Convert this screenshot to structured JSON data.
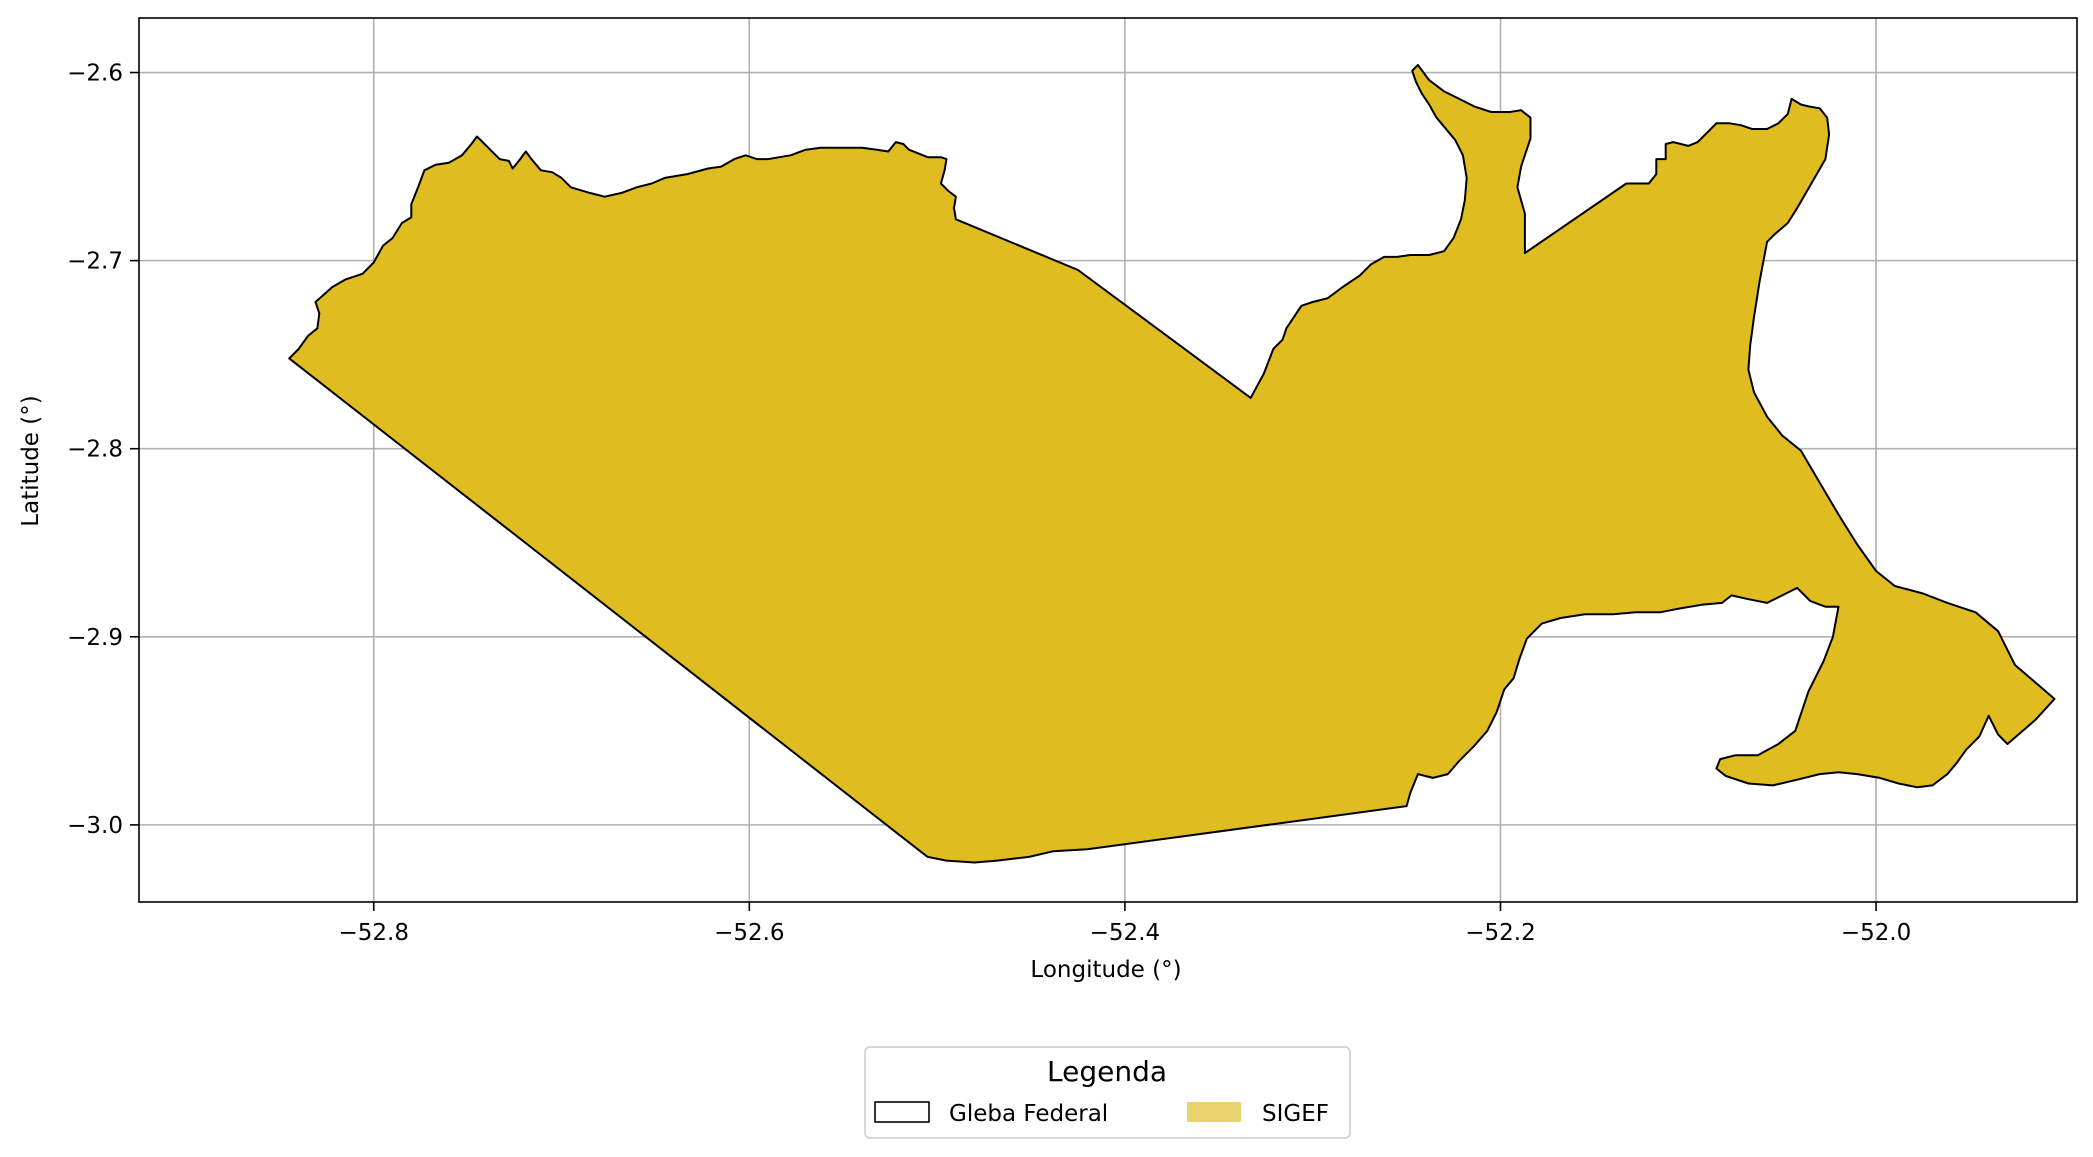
{
  "map": {
    "xlabel": "Longitude (°)",
    "ylabel": "Latitude (°)",
    "xlim": [
      -52.925,
      -51.893
    ],
    "ylim": [
      -3.041,
      -2.571
    ],
    "grid": true,
    "xticks": [
      {
        "value": -52.8,
        "label": "−52.8"
      },
      {
        "value": -52.6,
        "label": "−52.6"
      },
      {
        "value": -52.4,
        "label": "−52.4"
      },
      {
        "value": -52.2,
        "label": "−52.2"
      },
      {
        "value": -52.0,
        "label": "−52.0"
      }
    ],
    "yticks": [
      {
        "value": -2.6,
        "label": "−2.6"
      },
      {
        "value": -2.7,
        "label": "−2.7"
      },
      {
        "value": -2.8,
        "label": "−2.8"
      },
      {
        "value": -2.9,
        "label": "−2.9"
      },
      {
        "value": -3.0,
        "label": "−3.0"
      }
    ],
    "colors": {
      "sigef_fill": "#dfbc20",
      "outline": "#000000",
      "grid": "#b0b0b0",
      "legend_sigef_patch": "#e8d36f"
    },
    "legend": {
      "title": "Legenda",
      "placement": "bottom-center, below plot",
      "entries": [
        {
          "label": "Gleba Federal",
          "style": "outline"
        },
        {
          "label": "SIGEF",
          "style": "fill"
        }
      ]
    },
    "polygon": [
      [
        -52.845,
        -2.752
      ],
      [
        -52.84,
        -2.747
      ],
      [
        -52.835,
        -2.74
      ],
      [
        -52.83,
        -2.736
      ],
      [
        -52.829,
        -2.728
      ],
      [
        -52.831,
        -2.722
      ],
      [
        -52.822,
        -2.714
      ],
      [
        -52.815,
        -2.71
      ],
      [
        -52.806,
        -2.707
      ],
      [
        -52.8,
        -2.701
      ],
      [
        -52.795,
        -2.692
      ],
      [
        -52.79,
        -2.688
      ],
      [
        -52.785,
        -2.68
      ],
      [
        -52.78,
        -2.677
      ],
      [
        -52.78,
        -2.67
      ],
      [
        -52.776,
        -2.66
      ],
      [
        -52.773,
        -2.652
      ],
      [
        -52.767,
        -2.649
      ],
      [
        -52.76,
        -2.648
      ],
      [
        -52.753,
        -2.644
      ],
      [
        -52.748,
        -2.638
      ],
      [
        -52.745,
        -2.634
      ],
      [
        -52.742,
        -2.637
      ],
      [
        -52.738,
        -2.641
      ],
      [
        -52.733,
        -2.646
      ],
      [
        -52.728,
        -2.647
      ],
      [
        -52.726,
        -2.651
      ],
      [
        -52.722,
        -2.646
      ],
      [
        -52.719,
        -2.642
      ],
      [
        -52.716,
        -2.646
      ],
      [
        -52.711,
        -2.652
      ],
      [
        -52.705,
        -2.653
      ],
      [
        -52.7,
        -2.656
      ],
      [
        -52.695,
        -2.661
      ],
      [
        -52.685,
        -2.664
      ],
      [
        -52.677,
        -2.666
      ],
      [
        -52.668,
        -2.664
      ],
      [
        -52.66,
        -2.661
      ],
      [
        -52.652,
        -2.659
      ],
      [
        -52.645,
        -2.656
      ],
      [
        -52.633,
        -2.654
      ],
      [
        -52.622,
        -2.651
      ],
      [
        -52.615,
        -2.65
      ],
      [
        -52.608,
        -2.646
      ],
      [
        -52.602,
        -2.644
      ],
      [
        -52.596,
        -2.646
      ],
      [
        -52.59,
        -2.646
      ],
      [
        -52.584,
        -2.645
      ],
      [
        -52.578,
        -2.644
      ],
      [
        -52.57,
        -2.641
      ],
      [
        -52.562,
        -2.64
      ],
      [
        -52.55,
        -2.64
      ],
      [
        -52.54,
        -2.64
      ],
      [
        -52.532,
        -2.641
      ],
      [
        -52.526,
        -2.642
      ],
      [
        -52.522,
        -2.637
      ],
      [
        -52.518,
        -2.638
      ],
      [
        -52.515,
        -2.641
      ],
      [
        -52.51,
        -2.643
      ],
      [
        -52.505,
        -2.645
      ],
      [
        -52.498,
        -2.645
      ],
      [
        -52.495,
        -2.646
      ],
      [
        -52.496,
        -2.652
      ],
      [
        -52.498,
        -2.659
      ],
      [
        -52.494,
        -2.663
      ],
      [
        -52.49,
        -2.666
      ],
      [
        -52.491,
        -2.672
      ],
      [
        -52.49,
        -2.678
      ],
      [
        -52.425,
        -2.705
      ],
      [
        -52.333,
        -2.773
      ],
      [
        -52.326,
        -2.76
      ],
      [
        -52.321,
        -2.747
      ],
      [
        -52.316,
        -2.742
      ],
      [
        -52.314,
        -2.736
      ],
      [
        -52.31,
        -2.73
      ],
      [
        -52.306,
        -2.724
      ],
      [
        -52.3,
        -2.722
      ],
      [
        -52.292,
        -2.72
      ],
      [
        -52.284,
        -2.714
      ],
      [
        -52.275,
        -2.708
      ],
      [
        -52.269,
        -2.702
      ],
      [
        -52.262,
        -2.698
      ],
      [
        -52.255,
        -2.698
      ],
      [
        -52.248,
        -2.697
      ],
      [
        -52.238,
        -2.697
      ],
      [
        -52.23,
        -2.695
      ],
      [
        -52.225,
        -2.688
      ],
      [
        -52.221,
        -2.678
      ],
      [
        -52.219,
        -2.668
      ],
      [
        -52.218,
        -2.656
      ],
      [
        -52.22,
        -2.644
      ],
      [
        -52.224,
        -2.636
      ],
      [
        -52.229,
        -2.63
      ],
      [
        -52.234,
        -2.624
      ],
      [
        -52.238,
        -2.617
      ],
      [
        -52.242,
        -2.611
      ],
      [
        -52.245,
        -2.605
      ],
      [
        -52.247,
        -2.599
      ],
      [
        -52.244,
        -2.596
      ],
      [
        -52.238,
        -2.604
      ],
      [
        -52.23,
        -2.61
      ],
      [
        -52.222,
        -2.614
      ],
      [
        -52.214,
        -2.618
      ],
      [
        -52.205,
        -2.621
      ],
      [
        -52.195,
        -2.621
      ],
      [
        -52.189,
        -2.62
      ],
      [
        -52.184,
        -2.624
      ],
      [
        -52.184,
        -2.635
      ],
      [
        -52.189,
        -2.65
      ],
      [
        -52.191,
        -2.661
      ],
      [
        -52.187,
        -2.675
      ],
      [
        -52.187,
        -2.696
      ],
      [
        -52.133,
        -2.659
      ],
      [
        -52.121,
        -2.659
      ],
      [
        -52.117,
        -2.654
      ],
      [
        -52.117,
        -2.646
      ],
      [
        -52.112,
        -2.646
      ],
      [
        -52.112,
        -2.638
      ],
      [
        -52.108,
        -2.637
      ],
      [
        -52.1,
        -2.639
      ],
      [
        -52.095,
        -2.637
      ],
      [
        -52.09,
        -2.632
      ],
      [
        -52.085,
        -2.627
      ],
      [
        -52.078,
        -2.627
      ],
      [
        -52.072,
        -2.628
      ],
      [
        -52.066,
        -2.63
      ],
      [
        -52.058,
        -2.63
      ],
      [
        -52.052,
        -2.627
      ],
      [
        -52.047,
        -2.622
      ],
      [
        -52.045,
        -2.614
      ],
      [
        -52.04,
        -2.617
      ],
      [
        -52.036,
        -2.618
      ],
      [
        -52.03,
        -2.619
      ],
      [
        -52.026,
        -2.624
      ],
      [
        -52.025,
        -2.633
      ],
      [
        -52.027,
        -2.646
      ],
      [
        -52.035,
        -2.66
      ],
      [
        -52.042,
        -2.672
      ],
      [
        -52.047,
        -2.68
      ],
      [
        -52.054,
        -2.686
      ],
      [
        -52.058,
        -2.69
      ],
      [
        -52.062,
        -2.711
      ],
      [
        -52.065,
        -2.73
      ],
      [
        -52.067,
        -2.745
      ],
      [
        -52.068,
        -2.758
      ],
      [
        -52.065,
        -2.77
      ],
      [
        -52.058,
        -2.783
      ],
      [
        -52.05,
        -2.793
      ],
      [
        -52.04,
        -2.801
      ],
      [
        -52.03,
        -2.818
      ],
      [
        -52.02,
        -2.835
      ],
      [
        -52.01,
        -2.851
      ],
      [
        -52.0,
        -2.865
      ],
      [
        -51.99,
        -2.873
      ],
      [
        -51.975,
        -2.877
      ],
      [
        -51.962,
        -2.882
      ],
      [
        -51.947,
        -2.887
      ],
      [
        -51.935,
        -2.897
      ],
      [
        -51.926,
        -2.915
      ],
      [
        -51.905,
        -2.933
      ],
      [
        -51.915,
        -2.944
      ],
      [
        -51.93,
        -2.957
      ],
      [
        -51.935,
        -2.952
      ],
      [
        -51.94,
        -2.942
      ],
      [
        -51.945,
        -2.953
      ],
      [
        -51.952,
        -2.96
      ],
      [
        -51.957,
        -2.967
      ],
      [
        -51.962,
        -2.973
      ],
      [
        -51.97,
        -2.979
      ],
      [
        -51.978,
        -2.98
      ],
      [
        -51.988,
        -2.978
      ],
      [
        -51.998,
        -2.975
      ],
      [
        -52.01,
        -2.973
      ],
      [
        -52.02,
        -2.972
      ],
      [
        -52.03,
        -2.973
      ],
      [
        -52.042,
        -2.976
      ],
      [
        -52.055,
        -2.979
      ],
      [
        -52.068,
        -2.978
      ],
      [
        -52.08,
        -2.974
      ],
      [
        -52.085,
        -2.97
      ],
      [
        -52.083,
        -2.965
      ],
      [
        -52.075,
        -2.963
      ],
      [
        -52.063,
        -2.963
      ],
      [
        -52.052,
        -2.957
      ],
      [
        -52.043,
        -2.95
      ],
      [
        -52.036,
        -2.929
      ],
      [
        -52.028,
        -2.913
      ],
      [
        -52.023,
        -2.9
      ],
      [
        -52.02,
        -2.884
      ],
      [
        -52.027,
        -2.884
      ],
      [
        -52.035,
        -2.881
      ],
      [
        -52.042,
        -2.874
      ],
      [
        -52.05,
        -2.878
      ],
      [
        -52.058,
        -2.882
      ],
      [
        -52.068,
        -2.88
      ],
      [
        -52.077,
        -2.878
      ],
      [
        -52.082,
        -2.882
      ],
      [
        -52.093,
        -2.883
      ],
      [
        -52.105,
        -2.885
      ],
      [
        -52.115,
        -2.887
      ],
      [
        -52.128,
        -2.887
      ],
      [
        -52.14,
        -2.888
      ],
      [
        -52.155,
        -2.888
      ],
      [
        -52.168,
        -2.89
      ],
      [
        -52.178,
        -2.893
      ],
      [
        -52.186,
        -2.901
      ],
      [
        -52.19,
        -2.912
      ],
      [
        -52.193,
        -2.922
      ],
      [
        -52.198,
        -2.928
      ],
      [
        -52.202,
        -2.94
      ],
      [
        -52.207,
        -2.95
      ],
      [
        -52.214,
        -2.958
      ],
      [
        -52.222,
        -2.966
      ],
      [
        -52.228,
        -2.973
      ],
      [
        -52.236,
        -2.975
      ],
      [
        -52.244,
        -2.973
      ],
      [
        -52.248,
        -2.983
      ],
      [
        -52.25,
        -2.99
      ],
      [
        -52.42,
        -3.013
      ],
      [
        -52.438,
        -3.014
      ],
      [
        -52.451,
        -3.017
      ],
      [
        -52.468,
        -3.019
      ],
      [
        -52.48,
        -3.02
      ],
      [
        -52.495,
        -3.019
      ],
      [
        -52.505,
        -3.017
      ],
      [
        -52.509,
        -3.014
      ]
    ]
  }
}
